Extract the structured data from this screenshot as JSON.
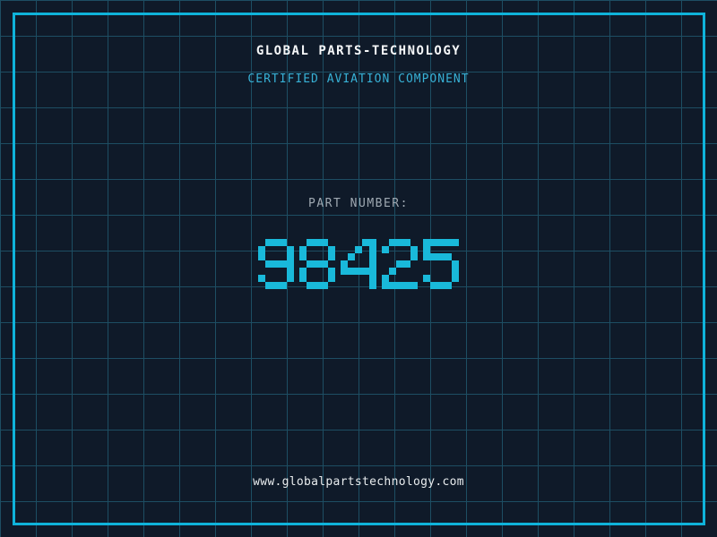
{
  "header": {
    "title": "GLOBAL PARTS-TECHNOLOGY",
    "subtitle": "CERTIFIED AVIATION COMPONENT"
  },
  "part": {
    "label": "PART NUMBER:",
    "value": "98425"
  },
  "footer": {
    "url": "www.globalpartstechnology.com"
  },
  "colors": {
    "background": "#0f1a29",
    "grid_line": "#1d4e63",
    "frame_border": "#0fb3da",
    "part_number_cyan": "#19b9da",
    "subtitle_cyan": "#37b1d6",
    "title_white": "#f5f7f8",
    "label_gray": "#9fa9b2",
    "url_light": "#e8ecee"
  }
}
